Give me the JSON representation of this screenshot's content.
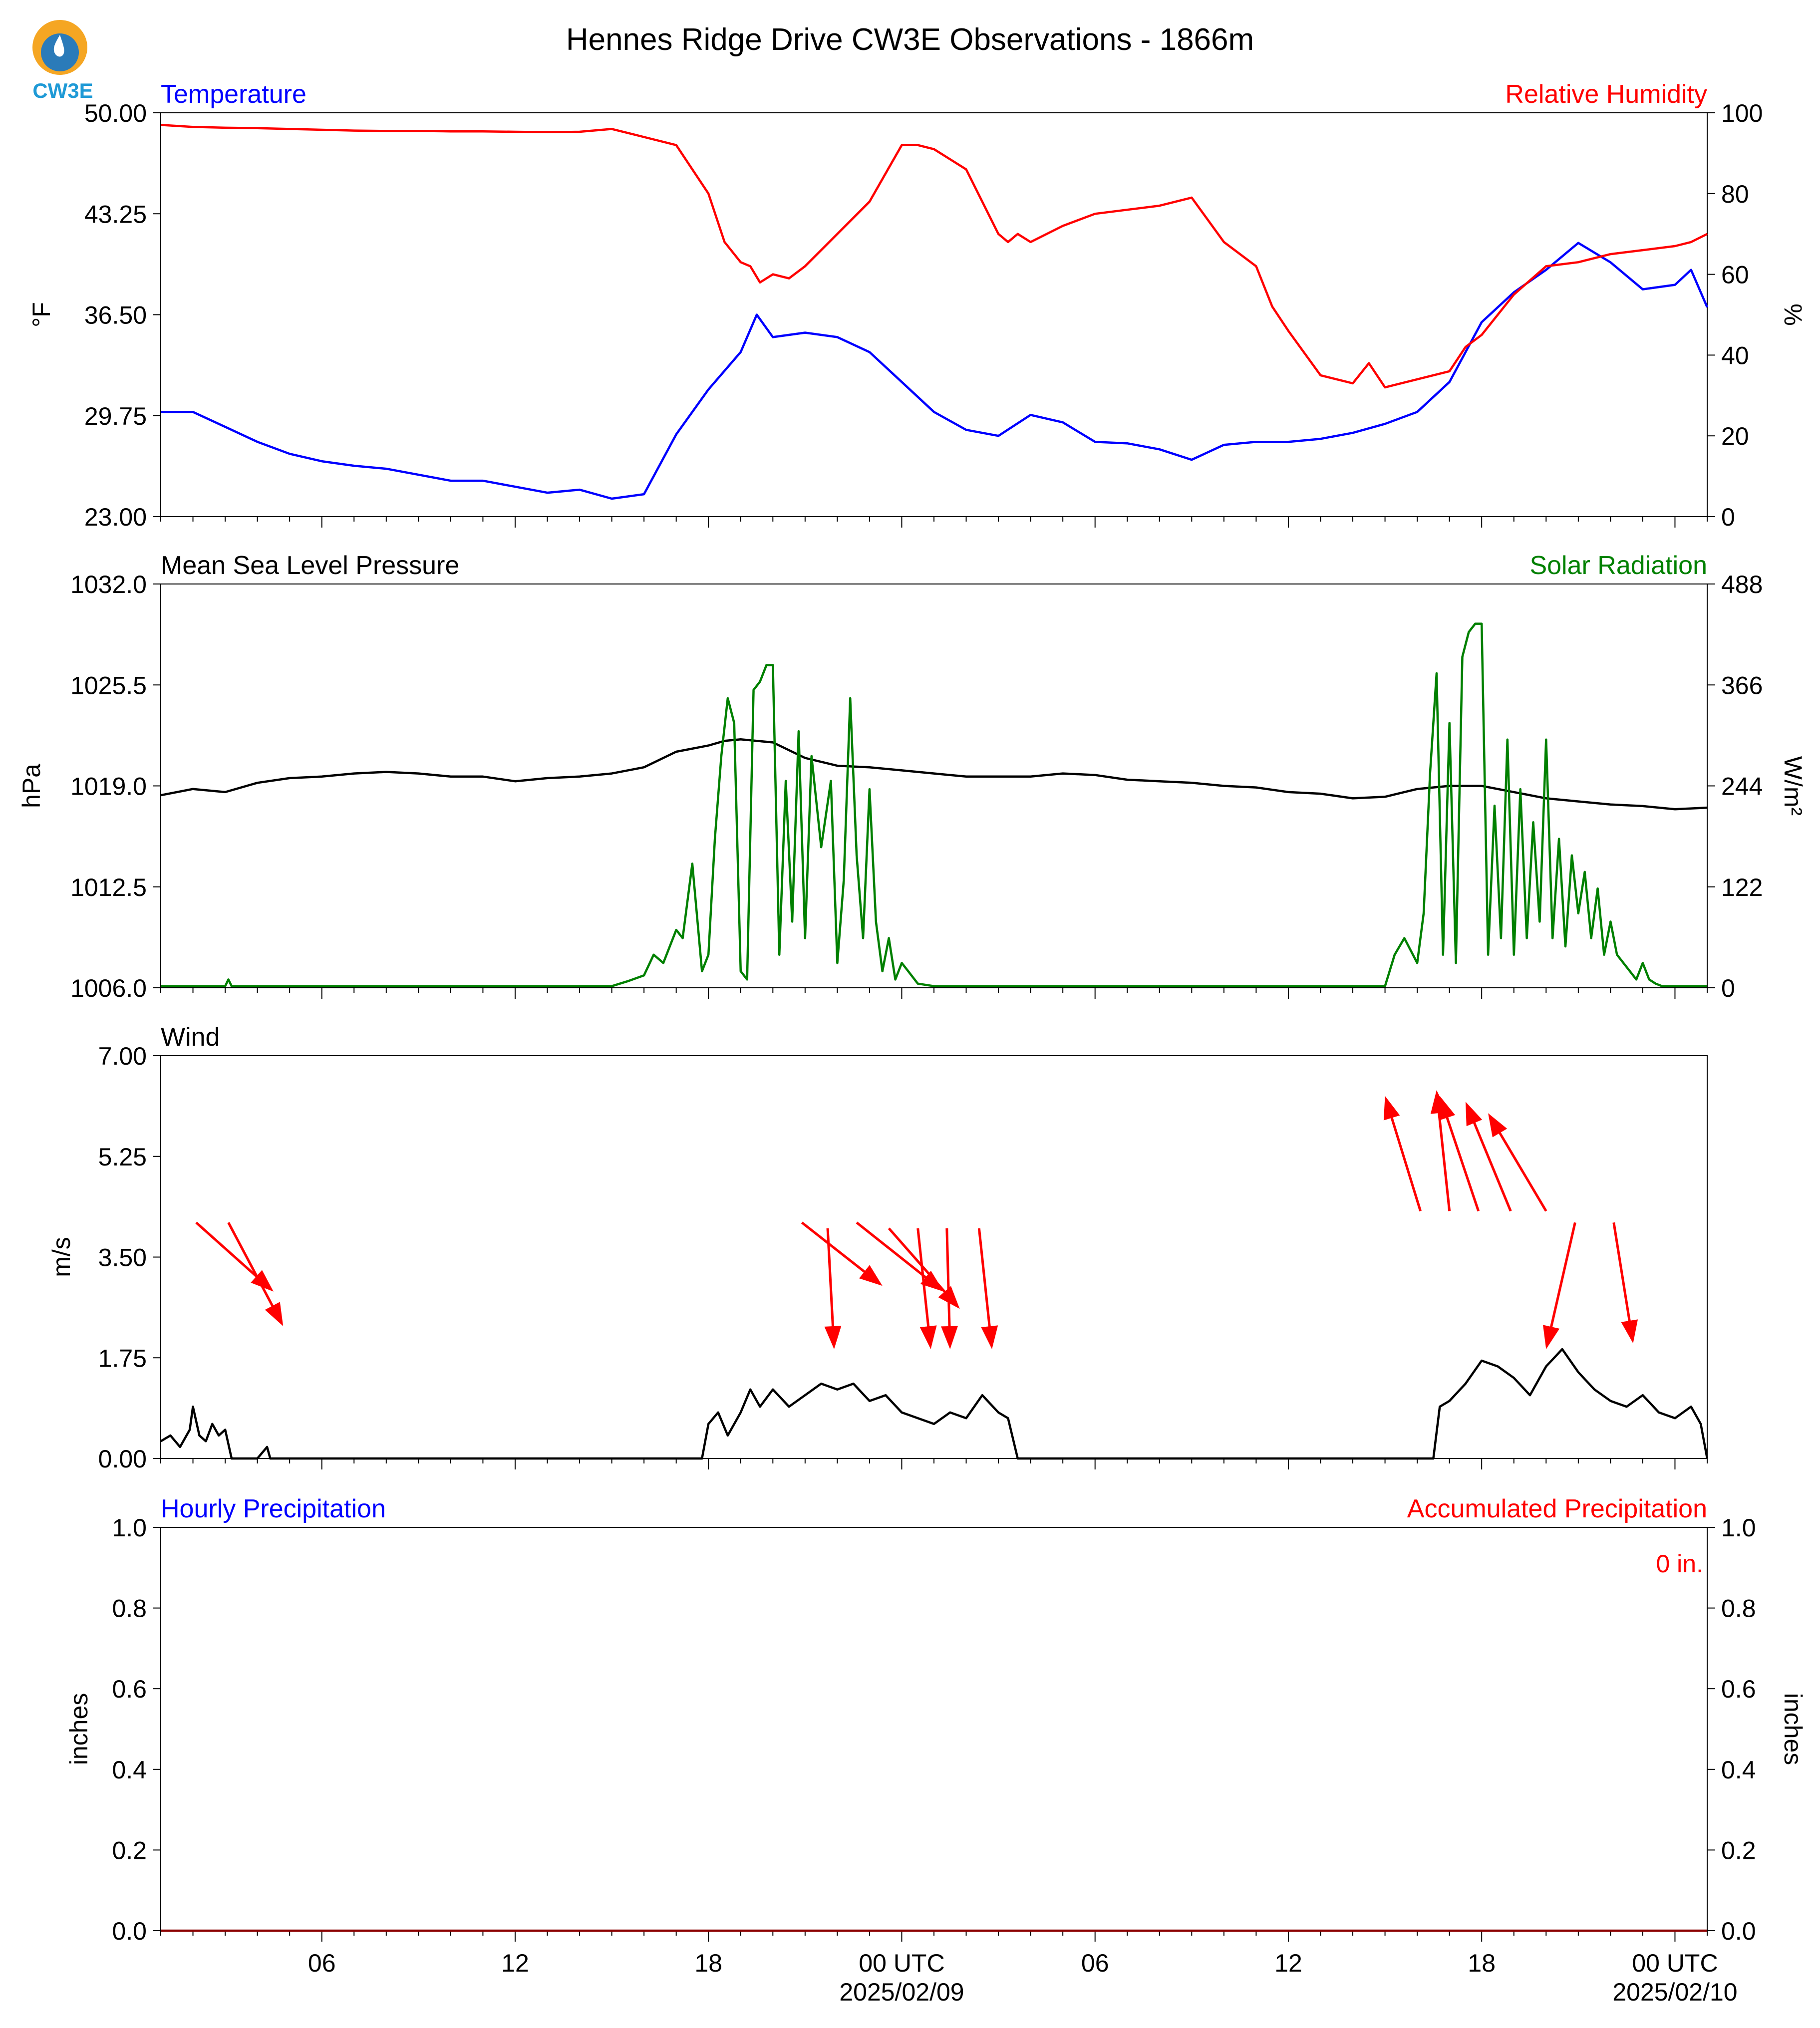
{
  "title": "Hennes Ridge Drive CW3E Observations - 1866m",
  "logo": {
    "text": "CW3E",
    "icon": "water-drop-sun-logo",
    "colors": {
      "orange": "#f5a623",
      "blue": "#2b7bb9",
      "teal": "#1f9ad6"
    }
  },
  "colors": {
    "blue": "#0000ff",
    "red": "#ff0000",
    "green": "#008000",
    "black": "#000000"
  },
  "x_axis": {
    "unit": "hours",
    "range": [
      0,
      48
    ],
    "ticks": [
      {
        "h": 5,
        "label": "06",
        "sub": ""
      },
      {
        "h": 11,
        "label": "12",
        "sub": ""
      },
      {
        "h": 17,
        "label": "18",
        "sub": ""
      },
      {
        "h": 23,
        "label": "00 UTC",
        "sub": "2025/02/09"
      },
      {
        "h": 29,
        "label": "06",
        "sub": ""
      },
      {
        "h": 35,
        "label": "12",
        "sub": ""
      },
      {
        "h": 41,
        "label": "18",
        "sub": ""
      },
      {
        "h": 47,
        "label": "00 UTC",
        "sub": "2025/02/10"
      }
    ],
    "minor_ticks": [
      0,
      1,
      2,
      3,
      4,
      6,
      7,
      8,
      9,
      10,
      12,
      13,
      14,
      15,
      16,
      18,
      19,
      20,
      21,
      22,
      24,
      25,
      26,
      27,
      28,
      30,
      31,
      32,
      33,
      34,
      36,
      37,
      38,
      39,
      40,
      42,
      43,
      44,
      45,
      46,
      48
    ]
  },
  "chart_data": [
    {
      "type": "line",
      "panel": "temperature-humidity",
      "left_title": "Temperature",
      "right_title": "Relative Humidity",
      "ylabel": "°F",
      "y2label": "%",
      "ylim": [
        23.0,
        50.0
      ],
      "y2lim": [
        0,
        100
      ],
      "yticks": [
        "23.00",
        "29.75",
        "36.50",
        "43.25",
        "50.00"
      ],
      "y2ticks": [
        "0",
        "20",
        "40",
        "60",
        "80",
        "100"
      ],
      "series": [
        {
          "axis": "left",
          "color": "#0000ff",
          "x": [
            0,
            1,
            2,
            3,
            4,
            5,
            6,
            7,
            8,
            9,
            10,
            11,
            12,
            13,
            14,
            15,
            16,
            17,
            18,
            18.5,
            19,
            20,
            21,
            22,
            23,
            24,
            25,
            26,
            27,
            28,
            29,
            30,
            31,
            32,
            33,
            34,
            35,
            36,
            37,
            38,
            39,
            40,
            41,
            42,
            43,
            44,
            45,
            46,
            47,
            47.5,
            48
          ],
          "y": [
            30.0,
            30.0,
            29.0,
            28.0,
            27.2,
            26.7,
            26.4,
            26.2,
            25.8,
            25.4,
            25.4,
            25.0,
            24.6,
            24.8,
            24.2,
            24.5,
            28.5,
            31.5,
            34.0,
            36.5,
            35.0,
            35.3,
            35.0,
            34.0,
            32.0,
            30.0,
            28.8,
            28.4,
            29.8,
            29.3,
            28.0,
            27.9,
            27.5,
            26.8,
            27.8,
            28.0,
            28.0,
            28.2,
            28.6,
            29.2,
            30.0,
            32.0,
            36.0,
            38.0,
            39.5,
            41.3,
            40.0,
            38.2,
            38.5,
            39.5,
            37.0
          ]
        },
        {
          "axis": "right",
          "color": "#ff0000",
          "x": [
            0,
            1,
            2,
            3,
            4,
            5,
            6,
            7,
            8,
            9,
            10,
            11,
            12,
            13,
            14,
            15,
            16,
            17,
            17.5,
            18,
            18.3,
            18.6,
            19,
            19.5,
            20,
            21,
            22,
            23,
            23.5,
            24,
            25,
            26,
            26.3,
            26.6,
            27,
            28,
            29,
            30,
            31,
            32,
            33,
            34,
            34.5,
            35,
            36,
            37,
            37.5,
            38,
            39,
            40,
            40.5,
            41,
            41.5,
            42,
            43,
            44,
            45,
            46,
            47,
            47.5,
            48
          ],
          "y": [
            97,
            96.5,
            96.3,
            96.2,
            96.0,
            95.8,
            95.6,
            95.5,
            95.5,
            95.4,
            95.4,
            95.3,
            95.2,
            95.3,
            96,
            94,
            92,
            80,
            68,
            63,
            62,
            58,
            60,
            59,
            62,
            70,
            78,
            92,
            92,
            91,
            86,
            70,
            68,
            70,
            68,
            72,
            75,
            76,
            77,
            79,
            68,
            62,
            52,
            46,
            35,
            33,
            38,
            32,
            34,
            36,
            42,
            45,
            50,
            55,
            62,
            63,
            65,
            66,
            67,
            68,
            70
          ]
        }
      ]
    },
    {
      "type": "line",
      "panel": "pressure-solar",
      "left_title": "Mean Sea Level Pressure",
      "right_title": "Solar Radiation",
      "ylabel": "hPa",
      "y2label": "W/m²",
      "ylim": [
        1006.0,
        1032.0
      ],
      "y2lim": [
        0,
        488
      ],
      "yticks": [
        "1006.0",
        "1012.5",
        "1019.0",
        "1025.5",
        "1032.0"
      ],
      "y2ticks": [
        "0",
        "122",
        "244",
        "366",
        "488"
      ],
      "series": [
        {
          "axis": "left",
          "color": "#000000",
          "x": [
            0,
            1,
            2,
            3,
            4,
            5,
            6,
            7,
            8,
            9,
            10,
            11,
            12,
            13,
            14,
            15,
            16,
            17,
            17.5,
            18,
            19,
            20,
            21,
            22,
            23,
            24,
            25,
            26,
            27,
            28,
            29,
            30,
            31,
            32,
            33,
            34,
            35,
            36,
            37,
            38,
            39,
            40,
            41,
            42,
            43,
            44,
            45,
            46,
            47,
            48
          ],
          "y": [
            1018.4,
            1018.8,
            1018.6,
            1019.2,
            1019.5,
            1019.6,
            1019.8,
            1019.9,
            1019.8,
            1019.6,
            1019.6,
            1019.3,
            1019.5,
            1019.6,
            1019.8,
            1020.2,
            1021.2,
            1021.6,
            1021.9,
            1022.0,
            1021.8,
            1020.8,
            1020.3,
            1020.2,
            1020.0,
            1019.8,
            1019.6,
            1019.6,
            1019.6,
            1019.8,
            1019.7,
            1019.4,
            1019.3,
            1019.2,
            1019.0,
            1018.9,
            1018.6,
            1018.5,
            1018.2,
            1018.3,
            1018.8,
            1019.0,
            1019.0,
            1018.6,
            1018.2,
            1018.0,
            1017.8,
            1017.7,
            1017.5,
            1017.6
          ]
        },
        {
          "axis": "right",
          "color": "#008000",
          "x": [
            0,
            2,
            2.1,
            2.2,
            14,
            14.5,
            15,
            15.3,
            15.6,
            16,
            16.2,
            16.5,
            16.8,
            17,
            17.2,
            17.4,
            17.6,
            17.8,
            18,
            18.2,
            18.4,
            18.6,
            18.8,
            19,
            19.2,
            19.4,
            19.6,
            19.8,
            20,
            20.2,
            20.5,
            20.8,
            21,
            21.2,
            21.4,
            21.6,
            21.8,
            22,
            22.2,
            22.4,
            22.6,
            22.8,
            23,
            23.2,
            23.5,
            24,
            31,
            38,
            38.3,
            38.6,
            39,
            39.2,
            39.4,
            39.6,
            39.8,
            40,
            40.2,
            40.4,
            40.6,
            40.8,
            41,
            41.2,
            41.4,
            41.6,
            41.8,
            42,
            42.2,
            42.4,
            42.6,
            42.8,
            43,
            43.2,
            43.4,
            43.6,
            43.8,
            44,
            44.2,
            44.4,
            44.6,
            44.8,
            45,
            45.2,
            45.4,
            45.6,
            45.8,
            46,
            46.2,
            46.4,
            46.6,
            46.8,
            47,
            47.2,
            47.5,
            48
          ],
          "y": [
            2,
            2,
            10,
            2,
            2,
            8,
            15,
            40,
            30,
            70,
            60,
            150,
            20,
            40,
            180,
            280,
            350,
            320,
            20,
            10,
            360,
            370,
            390,
            390,
            40,
            250,
            80,
            310,
            60,
            280,
            170,
            250,
            30,
            130,
            350,
            160,
            60,
            240,
            80,
            20,
            60,
            10,
            30,
            20,
            5,
            2,
            2,
            2,
            40,
            60,
            30,
            90,
            260,
            380,
            40,
            320,
            30,
            400,
            430,
            440,
            440,
            40,
            220,
            60,
            300,
            40,
            240,
            60,
            200,
            80,
            300,
            60,
            180,
            50,
            160,
            90,
            140,
            60,
            120,
            40,
            80,
            40,
            30,
            20,
            10,
            30,
            10,
            5,
            2,
            2,
            2,
            2,
            2,
            2
          ]
        }
      ]
    },
    {
      "type": "line",
      "panel": "wind",
      "left_title": "Wind",
      "ylabel": "m/s",
      "ylim": [
        0.0,
        7.0
      ],
      "yticks": [
        "0.00",
        "1.75",
        "3.50",
        "5.25",
        "7.00"
      ],
      "series": [
        {
          "axis": "left",
          "color": "#000000",
          "x": [
            0,
            0.3,
            0.6,
            0.9,
            1.0,
            1.2,
            1.4,
            1.6,
            1.8,
            2.0,
            2.2,
            2.3,
            3.0,
            3.3,
            3.4,
            16.8,
            17,
            17.3,
            17.6,
            18,
            18.3,
            18.6,
            19,
            19.5,
            20,
            20.5,
            21,
            21.5,
            22,
            22.5,
            23,
            23.5,
            24,
            24.5,
            25,
            25.5,
            26,
            26.3,
            26.6,
            39.5,
            39.7,
            40,
            40.5,
            41,
            41.5,
            42,
            42.5,
            43,
            43.5,
            44,
            44.5,
            45,
            45.5,
            46,
            46.5,
            47,
            47.5,
            47.8,
            48
          ],
          "y": [
            0.3,
            0.4,
            0.2,
            0.5,
            0.9,
            0.4,
            0.3,
            0.6,
            0.4,
            0.5,
            0.0,
            0.0,
            0.0,
            0.2,
            0.0,
            0.0,
            0.6,
            0.8,
            0.4,
            0.8,
            1.2,
            0.9,
            1.2,
            0.9,
            1.1,
            1.3,
            1.2,
            1.3,
            1.0,
            1.1,
            0.8,
            0.7,
            0.6,
            0.8,
            0.7,
            1.1,
            0.8,
            0.7,
            0.0,
            0.0,
            0.9,
            1.0,
            1.3,
            1.7,
            1.6,
            1.4,
            1.1,
            1.6,
            1.9,
            1.5,
            1.2,
            1.0,
            0.9,
            1.1,
            0.8,
            0.7,
            0.9,
            0.6,
            0.0
          ]
        },
        {
          "axis": "left",
          "type": "arrows",
          "color": "#ff0000",
          "arrows": [
            [
              1.1,
              4.1,
              3.5,
              2.9
            ],
            [
              2.1,
              4.1,
              3.8,
              2.3
            ],
            [
              19.9,
              4.1,
              22.4,
              3.0
            ],
            [
              20.7,
              4.0,
              20.9,
              1.9
            ],
            [
              21.6,
              4.1,
              24.3,
              2.9
            ],
            [
              22.6,
              4.0,
              24.8,
              2.6
            ],
            [
              23.5,
              4.0,
              23.9,
              1.9
            ],
            [
              24.4,
              4.0,
              24.5,
              1.9
            ],
            [
              25.4,
              4.0,
              25.8,
              1.9
            ],
            [
              39.1,
              4.3,
              38.0,
              6.3
            ],
            [
              40.0,
              4.3,
              39.6,
              6.4
            ],
            [
              40.9,
              4.3,
              39.7,
              6.3
            ],
            [
              41.9,
              4.3,
              40.5,
              6.2
            ],
            [
              43.0,
              4.3,
              41.2,
              6.0
            ],
            [
              43.9,
              4.1,
              43.0,
              1.9
            ],
            [
              45.1,
              4.1,
              45.7,
              2.0
            ]
          ]
        }
      ]
    },
    {
      "type": "line",
      "panel": "precipitation",
      "left_title": "Hourly Precipitation",
      "right_title": "Accumulated Precipitation",
      "ylabel": "inches",
      "y2label": "inches",
      "ylim": [
        0.0,
        1.0
      ],
      "y2lim": [
        0.0,
        1.0
      ],
      "yticks": [
        "0.0",
        "0.2",
        "0.4",
        "0.6",
        "0.8",
        "1.0"
      ],
      "y2ticks": [
        "0.0",
        "0.2",
        "0.4",
        "0.6",
        "0.8",
        "1.0"
      ],
      "annotation": "0 in.",
      "series": [
        {
          "axis": "right",
          "color": "#8b0000",
          "x": [
            0,
            48
          ],
          "y": [
            0,
            0
          ]
        }
      ]
    }
  ]
}
